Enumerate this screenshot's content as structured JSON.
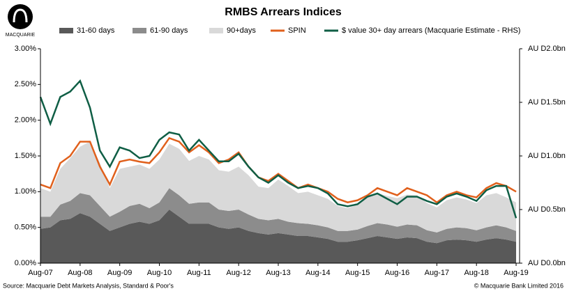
{
  "chart_data": {
    "type": "area",
    "title": "RMBS Arrears Indices",
    "logo": "MACQUARIE",
    "source": "Source: Macquarie Debt Markets Analysis, Standard & Poor's",
    "copyright": "© Macquarie Bank Limited 2016",
    "categories": [
      "Aug-07",
      null,
      null,
      null,
      "Aug-08",
      null,
      null,
      null,
      "Aug-09",
      null,
      null,
      null,
      "Aug-10",
      null,
      null,
      null,
      "Aug-11",
      null,
      null,
      null,
      "Aug-12",
      null,
      null,
      null,
      "Aug-13",
      null,
      null,
      null,
      "Aug-14",
      null,
      null,
      null,
      "Aug-15",
      null,
      null,
      null,
      "Aug-16",
      null,
      null,
      null,
      "Aug-17",
      null,
      null,
      null,
      "Aug-18",
      null,
      null,
      null,
      "Aug-19"
    ],
    "ylim": [
      0,
      3
    ],
    "yticks": [
      {
        "value": 0,
        "label": "0.00%"
      },
      {
        "value": 0.5,
        "label": "0.50%"
      },
      {
        "value": 1,
        "label": "1.00%"
      },
      {
        "value": 1.5,
        "label": "1.50%"
      },
      {
        "value": 2,
        "label": "2.00%"
      },
      {
        "value": 2.5,
        "label": "2.50%"
      },
      {
        "value": 3,
        "label": "3.00%"
      }
    ],
    "y2lim": [
      0,
      2
    ],
    "y2ticks": [
      {
        "value": 0,
        "label": "AU D0.0bn"
      },
      {
        "value": 0.5,
        "label": "AU D0.5bn"
      },
      {
        "value": 1,
        "label": "AU D1.0bn"
      },
      {
        "value": 1.5,
        "label": "AU D1.5bn"
      },
      {
        "value": 2,
        "label": "AU D2.0bn"
      }
    ],
    "series": [
      {
        "name": "31-60 days",
        "type": "area",
        "color": "#595959",
        "values": [
          0.48,
          0.5,
          0.6,
          0.62,
          0.7,
          0.65,
          0.55,
          0.45,
          0.5,
          0.55,
          0.58,
          0.55,
          0.6,
          0.75,
          0.65,
          0.55,
          0.55,
          0.55,
          0.5,
          0.48,
          0.5,
          0.45,
          0.42,
          0.4,
          0.42,
          0.4,
          0.38,
          0.38,
          0.36,
          0.34,
          0.3,
          0.3,
          0.32,
          0.35,
          0.38,
          0.36,
          0.34,
          0.36,
          0.35,
          0.3,
          0.28,
          0.32,
          0.33,
          0.32,
          0.3,
          0.33,
          0.35,
          0.33,
          0.3
        ]
      },
      {
        "name": "61-90 days",
        "type": "area",
        "color": "#8c8c8c",
        "values": [
          0.17,
          0.15,
          0.22,
          0.25,
          0.28,
          0.3,
          0.25,
          0.2,
          0.22,
          0.25,
          0.25,
          0.22,
          0.25,
          0.3,
          0.3,
          0.28,
          0.3,
          0.3,
          0.25,
          0.25,
          0.25,
          0.23,
          0.2,
          0.2,
          0.2,
          0.18,
          0.18,
          0.17,
          0.17,
          0.16,
          0.15,
          0.15,
          0.15,
          0.17,
          0.18,
          0.18,
          0.17,
          0.18,
          0.18,
          0.16,
          0.15,
          0.16,
          0.17,
          0.17,
          0.16,
          0.17,
          0.18,
          0.17,
          0.15
        ]
      },
      {
        "name": "90+days",
        "type": "area",
        "color": "#d9d9d9",
        "values": [
          0.4,
          0.35,
          0.5,
          0.6,
          0.65,
          0.75,
          0.6,
          0.4,
          0.6,
          0.55,
          0.55,
          0.55,
          0.6,
          0.62,
          0.65,
          0.6,
          0.65,
          0.6,
          0.55,
          0.55,
          0.6,
          0.55,
          0.45,
          0.45,
          0.55,
          0.5,
          0.42,
          0.45,
          0.42,
          0.4,
          0.35,
          0.32,
          0.35,
          0.4,
          0.42,
          0.4,
          0.4,
          0.42,
          0.42,
          0.38,
          0.35,
          0.4,
          0.42,
          0.4,
          0.38,
          0.45,
          0.45,
          0.42,
          0.4
        ]
      },
      {
        "name": "SPIN",
        "type": "line",
        "color": "#e0601c",
        "values": [
          1.1,
          1.05,
          1.4,
          1.5,
          1.7,
          1.7,
          1.35,
          1.1,
          1.42,
          1.45,
          1.42,
          1.4,
          1.55,
          1.75,
          1.7,
          1.55,
          1.65,
          1.55,
          1.4,
          1.45,
          1.55,
          1.35,
          1.2,
          1.15,
          1.25,
          1.15,
          1.05,
          1.1,
          1.05,
          1.0,
          0.9,
          0.85,
          0.88,
          0.95,
          1.05,
          1.0,
          0.95,
          1.05,
          1.0,
          0.95,
          0.85,
          0.95,
          1.0,
          0.95,
          0.92,
          1.05,
          1.12,
          1.08,
          1.0
        ]
      },
      {
        "name": "$ value 30+ day arrears (Macquarie Estimate - RHS)",
        "type": "line",
        "axis": "y2",
        "color": "#0f5e45",
        "values": [
          1.55,
          1.3,
          1.55,
          1.6,
          1.7,
          1.45,
          1.05,
          0.9,
          1.08,
          1.05,
          0.98,
          1.0,
          1.15,
          1.22,
          1.2,
          1.05,
          1.15,
          1.05,
          0.95,
          0.95,
          1.02,
          0.9,
          0.8,
          0.75,
          0.82,
          0.75,
          0.7,
          0.72,
          0.7,
          0.65,
          0.55,
          0.53,
          0.55,
          0.62,
          0.65,
          0.6,
          0.55,
          0.62,
          0.62,
          0.58,
          0.55,
          0.62,
          0.65,
          0.62,
          0.58,
          0.68,
          0.72,
          0.72,
          0.42
        ]
      }
    ]
  }
}
